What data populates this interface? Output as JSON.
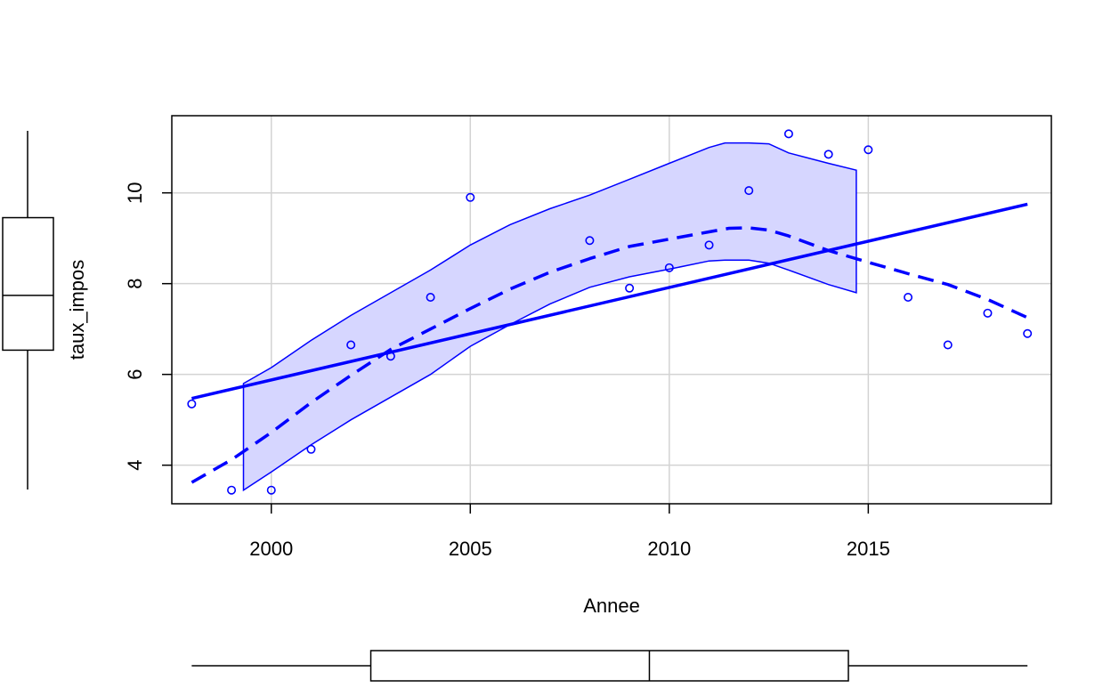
{
  "chart_data": {
    "type": "scatter",
    "title": "",
    "xlabel": "Annee",
    "ylabel": "taux_impos",
    "xlim": [
      1997.5,
      2019.6
    ],
    "ylim": [
      3.15,
      11.7
    ],
    "x_ticks": [
      2000,
      2005,
      2010,
      2015
    ],
    "y_ticks": [
      4,
      6,
      8,
      10
    ],
    "grid": true,
    "colors": {
      "points": "#0000ff",
      "fit_line": "#0000ff",
      "smooth_line": "#0000ff",
      "band_fill": "#d6d6ff",
      "band_stroke": "#0000ff",
      "grid": "#d3d3d3"
    },
    "points": [
      {
        "x": 1998,
        "y": 5.35
      },
      {
        "x": 1999,
        "y": 3.45
      },
      {
        "x": 2000,
        "y": 3.45
      },
      {
        "x": 2001,
        "y": 4.35
      },
      {
        "x": 2002,
        "y": 6.65
      },
      {
        "x": 2003,
        "y": 6.4
      },
      {
        "x": 2004,
        "y": 7.7
      },
      {
        "x": 2005,
        "y": 9.9
      },
      {
        "x": 2008,
        "y": 8.95
      },
      {
        "x": 2009,
        "y": 7.9
      },
      {
        "x": 2010,
        "y": 8.35
      },
      {
        "x": 2011,
        "y": 8.85
      },
      {
        "x": 2012,
        "y": 10.05
      },
      {
        "x": 2013,
        "y": 11.3
      },
      {
        "x": 2014,
        "y": 10.85
      },
      {
        "x": 2015,
        "y": 10.95
      },
      {
        "x": 2016,
        "y": 7.7
      },
      {
        "x": 2017,
        "y": 6.65
      },
      {
        "x": 2018,
        "y": 7.35
      },
      {
        "x": 2019,
        "y": 6.9
      }
    ],
    "linear_fit": {
      "x": [
        1998,
        2019
      ],
      "y": [
        5.47,
        9.75
      ]
    },
    "smooth_line": {
      "x": [
        1998,
        1999,
        2000,
        2001,
        2002,
        2003,
        2004,
        2005,
        2006,
        2007,
        2008,
        2009,
        2010,
        2011,
        2011.5,
        2012,
        2012.5,
        2013,
        2014,
        2015,
        2016,
        2017,
        2018,
        2019
      ],
      "y": [
        3.62,
        4.12,
        4.72,
        5.38,
        5.98,
        6.55,
        7.0,
        7.45,
        7.88,
        8.25,
        8.55,
        8.82,
        8.98,
        9.14,
        9.22,
        9.23,
        9.18,
        9.05,
        8.73,
        8.47,
        8.22,
        7.98,
        7.65,
        7.25
      ]
    },
    "confidence_band": {
      "x": [
        1999.3,
        2000,
        2001,
        2002,
        2003,
        2004,
        2005,
        2006,
        2007,
        2008,
        2009,
        2010,
        2011,
        2011.4,
        2012,
        2012.5,
        2013,
        2014,
        2014.7
      ],
      "upper": [
        5.8,
        6.15,
        6.75,
        7.3,
        7.8,
        8.3,
        8.85,
        9.3,
        9.65,
        9.95,
        10.3,
        10.65,
        11.0,
        11.1,
        11.1,
        11.08,
        10.88,
        10.65,
        10.5
      ],
      "lower": [
        3.45,
        3.85,
        4.45,
        5.0,
        5.5,
        6.0,
        6.62,
        7.1,
        7.55,
        7.92,
        8.15,
        8.32,
        8.5,
        8.52,
        8.52,
        8.45,
        8.3,
        7.98,
        7.8
      ]
    },
    "y_boxplot": {
      "min": 3.45,
      "q1": 6.5,
      "median": 7.7,
      "q3": 9.4,
      "max": 11.3
    },
    "x_boxplot": {
      "min": 1998,
      "q1": 2002.5,
      "median": 2009.5,
      "q3": 2014.5,
      "max": 2019
    }
  }
}
